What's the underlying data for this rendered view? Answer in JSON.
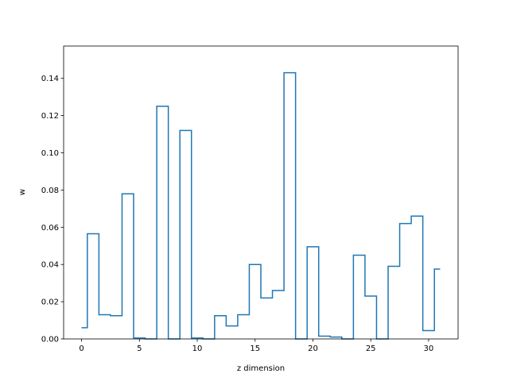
{
  "chart_data": {
    "type": "line",
    "drawstyle": "steps-mid",
    "xlabel": "z dimension",
    "ylabel": "w",
    "xlim": [
      -1.55,
      32.55
    ],
    "ylim": [
      0,
      0.15735
    ],
    "xticks": [
      0,
      5,
      10,
      15,
      20,
      25,
      30
    ],
    "xtick_labels": [
      "0",
      "5",
      "10",
      "15",
      "20",
      "25",
      "30"
    ],
    "yticks": [
      0.0,
      0.02,
      0.04,
      0.06,
      0.08,
      0.1,
      0.12,
      0.14
    ],
    "ytick_labels": [
      "0.00",
      "0.02",
      "0.04",
      "0.06",
      "0.08",
      "0.10",
      "0.12",
      "0.14"
    ],
    "grid": false,
    "series": [
      {
        "color": "#1f77b4",
        "x": [
          0,
          1,
          2,
          3,
          4,
          5,
          6,
          7,
          8,
          9,
          10,
          11,
          12,
          13,
          14,
          15,
          16,
          17,
          18,
          19,
          20,
          21,
          22,
          23,
          24,
          25,
          26,
          27,
          28,
          29,
          30,
          31
        ],
        "values": [
          0.006,
          0.0565,
          0.013,
          0.0125,
          0.078,
          0.0005,
          0.0,
          0.125,
          0.0,
          0.112,
          0.0005,
          0.0,
          0.0125,
          0.007,
          0.013,
          0.04,
          0.022,
          0.026,
          0.143,
          0.0,
          0.0495,
          0.0015,
          0.001,
          0.0,
          0.045,
          0.023,
          0.0,
          0.039,
          0.062,
          0.066,
          0.0045,
          0.0375
        ]
      }
    ]
  }
}
